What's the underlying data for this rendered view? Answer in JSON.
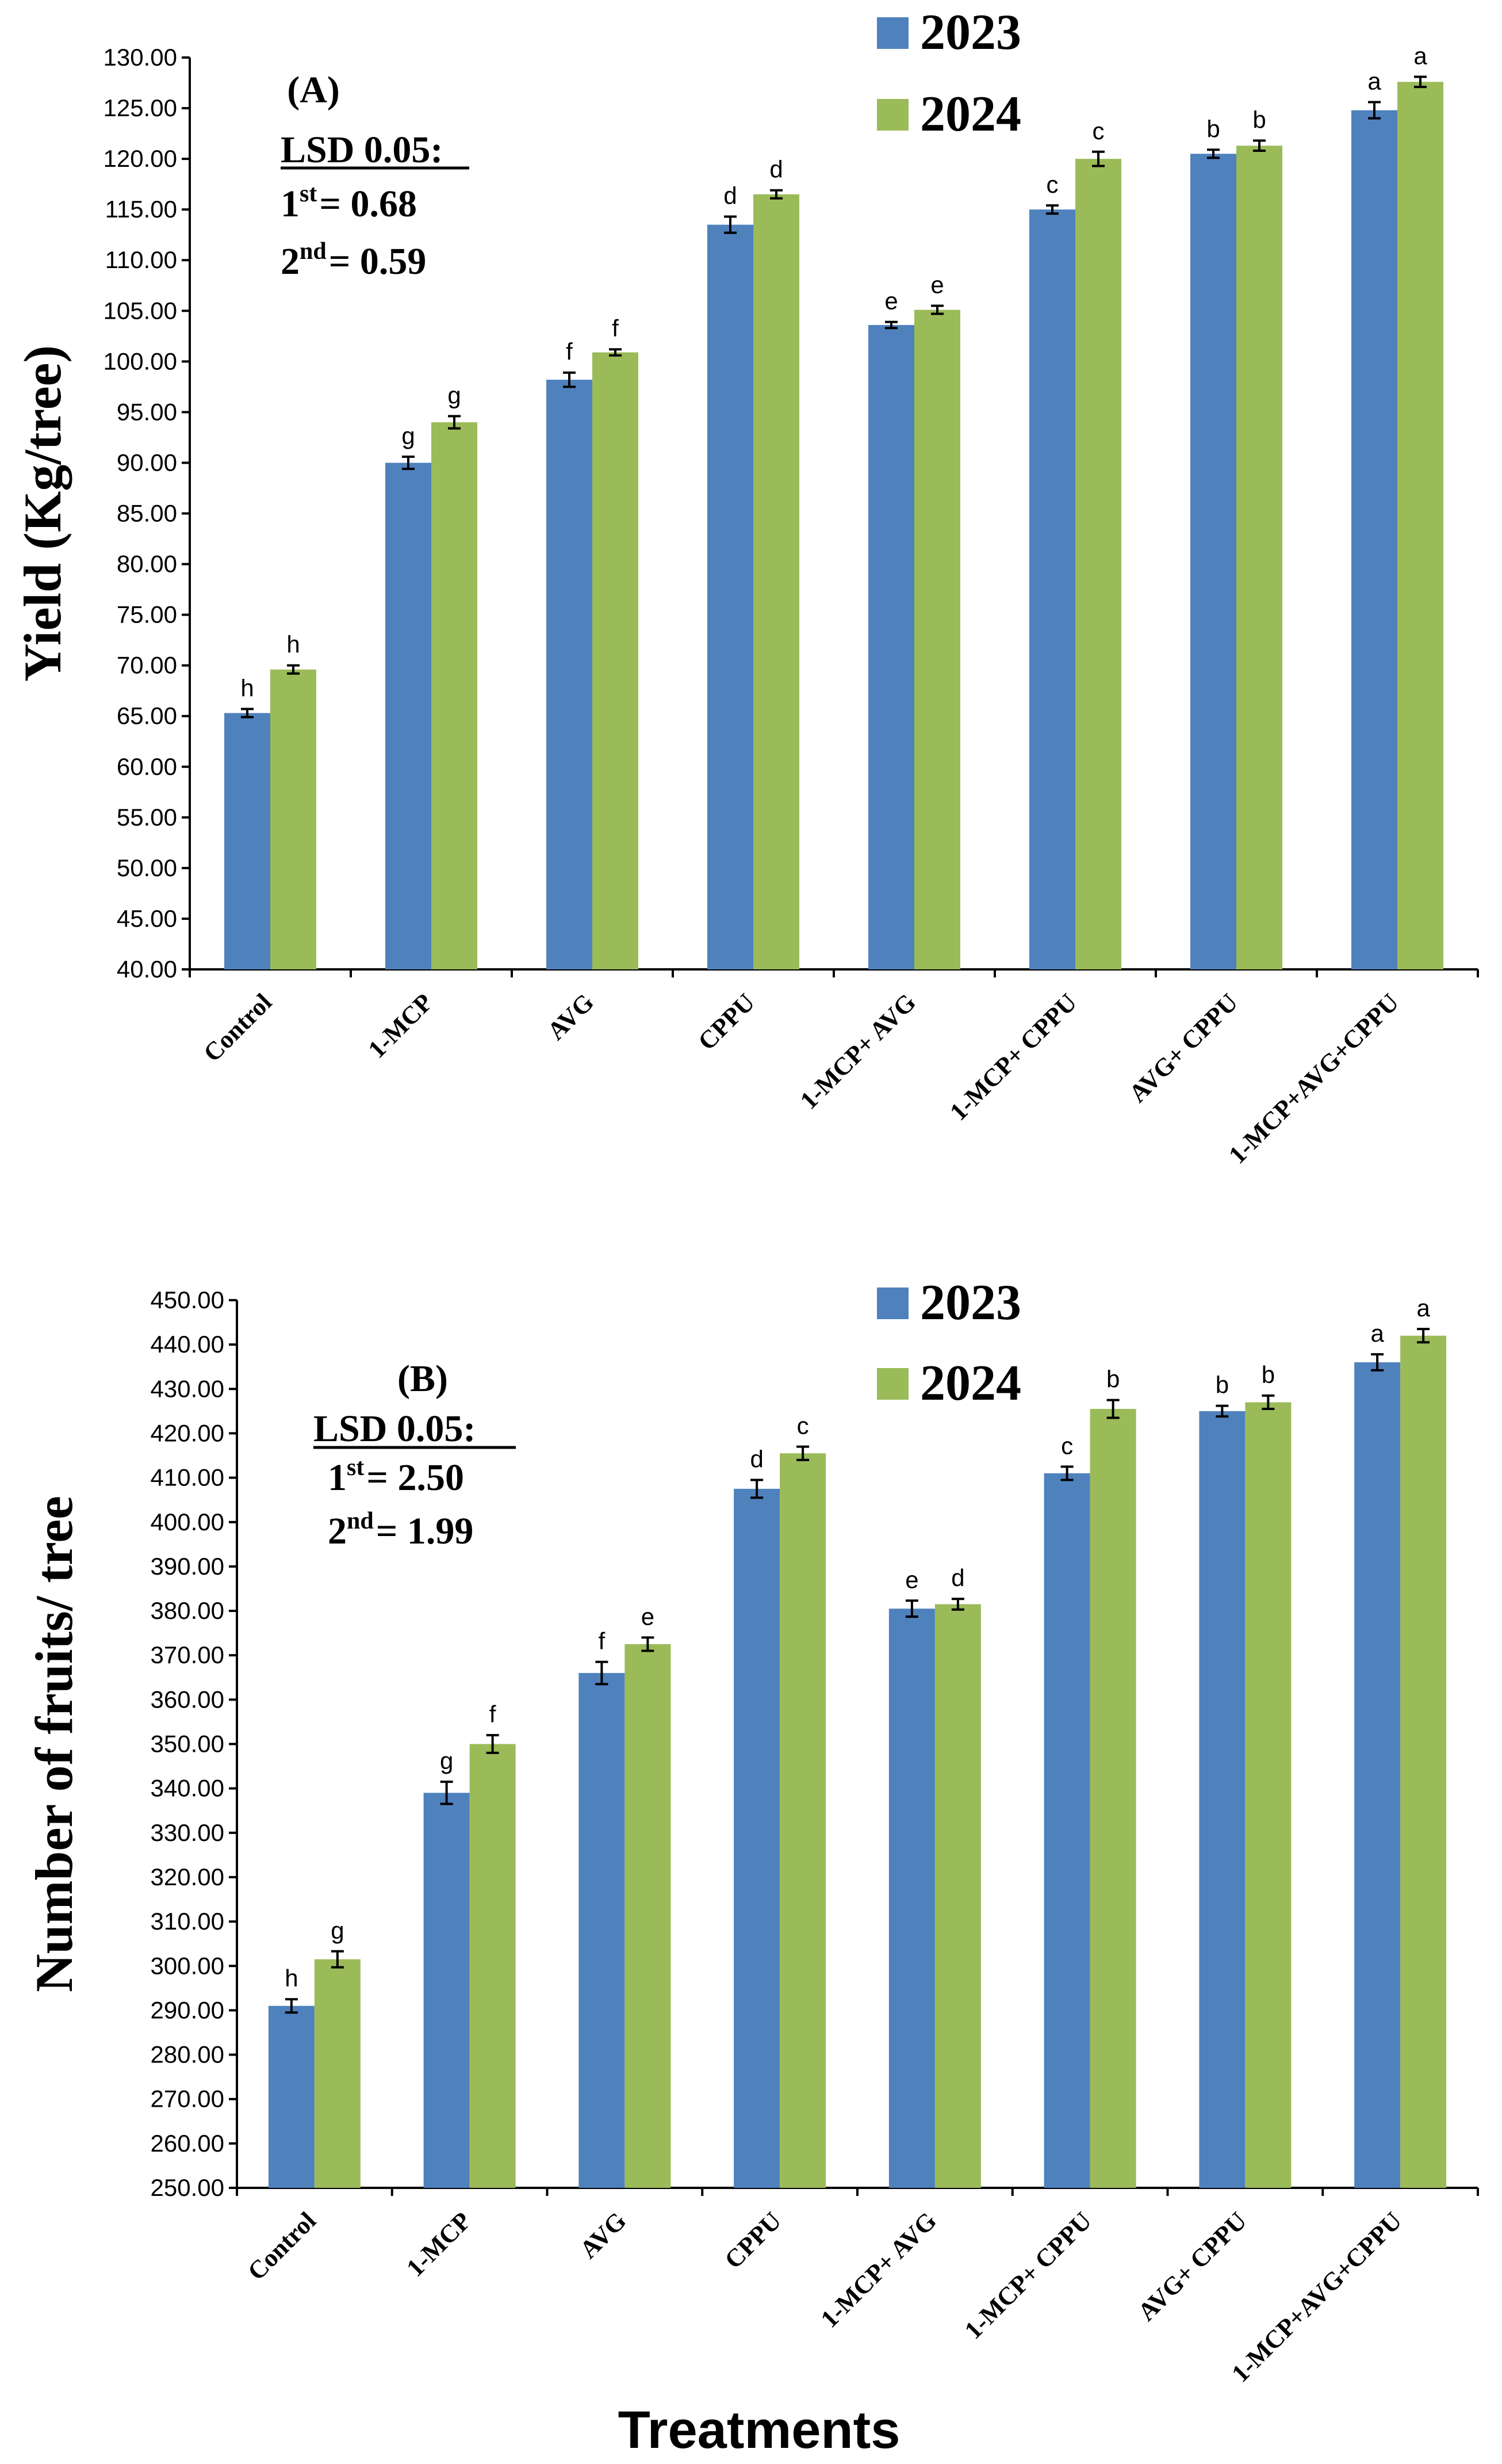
{
  "colors": {
    "y2023": "#4F81BD",
    "y2024": "#9BBB59"
  },
  "chart_data": [
    {
      "type": "bar",
      "panel_label": "(A)",
      "lsd_title": "LSD 0.05:",
      "lsd_1_prefix": "1",
      "lsd_1_sup": "st",
      "lsd_1_value": "= 0.68",
      "lsd_2_prefix": "2",
      "lsd_2_sup": "nd",
      "lsd_2_value": "= 0.59",
      "ylabel": "Yield  (Kg/tree)",
      "xlabel": "",
      "ylim": [
        40,
        130
      ],
      "ytick_step": 5,
      "categories": [
        "Control",
        "1-MCP",
        "AVG",
        "CPPU",
        "1-MCP+ AVG",
        "1-MCP+ CPPU",
        "AVG+ CPPU",
        "1-MCP+AVG+CPPU"
      ],
      "series": [
        {
          "name": "2023",
          "values": [
            65.3,
            90.0,
            98.2,
            113.5,
            103.6,
            115.0,
            120.5,
            124.8
          ],
          "errors": [
            0.4,
            0.6,
            0.7,
            0.8,
            0.3,
            0.4,
            0.4,
            0.8
          ],
          "letters": [
            "h",
            "g",
            "f",
            "d",
            "e",
            "c",
            "b",
            "a"
          ]
        },
        {
          "name": "2024",
          "values": [
            69.6,
            94.0,
            100.9,
            116.5,
            105.1,
            120.0,
            121.3,
            127.6
          ],
          "errors": [
            0.4,
            0.6,
            0.3,
            0.4,
            0.4,
            0.7,
            0.5,
            0.5
          ],
          "letters": [
            "h",
            "g",
            "f",
            "d",
            "e",
            "c",
            "b",
            "a"
          ]
        }
      ]
    },
    {
      "type": "bar",
      "panel_label": "(B)",
      "lsd_title": "LSD 0.05:",
      "lsd_1_prefix": "1",
      "lsd_1_sup": "st",
      "lsd_1_value": "= 2.50",
      "lsd_2_prefix": "2",
      "lsd_2_sup": "nd",
      "lsd_2_value": "= 1.99",
      "ylabel": "Number of fruits/ tree",
      "xlabel": "Treatments",
      "ylim": [
        250,
        450
      ],
      "ytick_step": 10,
      "categories": [
        "Control",
        "1-MCP",
        "AVG",
        "CPPU",
        "1-MCP+ AVG",
        "1-MCP+ CPPU",
        "AVG+ CPPU",
        "1-MCP+AVG+CPPU"
      ],
      "series": [
        {
          "name": "2023",
          "values": [
            291,
            339,
            366,
            407.5,
            380.5,
            411,
            425,
            436
          ],
          "errors": [
            1.5,
            2.5,
            2.5,
            2.0,
            1.8,
            1.5,
            1.2,
            1.8
          ],
          "letters": [
            "h",
            "g",
            "f",
            "d",
            "e",
            "c",
            "b",
            "a"
          ]
        },
        {
          "name": "2024",
          "values": [
            301.5,
            350,
            372.5,
            415.5,
            381.5,
            425.5,
            427,
            442
          ],
          "errors": [
            1.8,
            2.0,
            1.5,
            1.5,
            1.2,
            2.0,
            1.5,
            1.5
          ],
          "letters": [
            "g",
            "f",
            "e",
            "c",
            "d",
            "b",
            "b",
            "a"
          ]
        }
      ]
    }
  ]
}
